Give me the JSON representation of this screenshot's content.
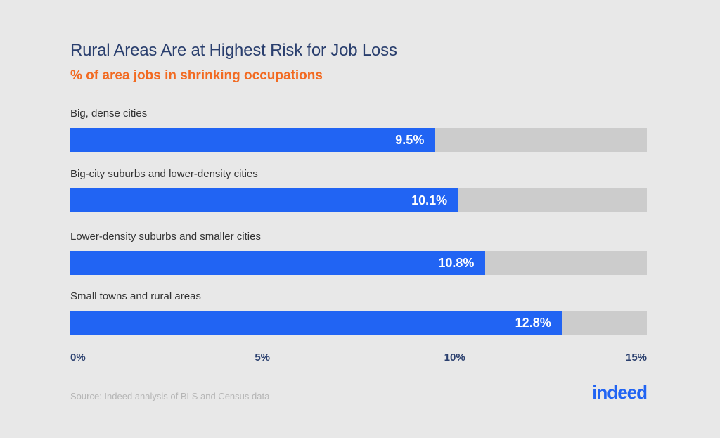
{
  "chart_data": {
    "type": "bar",
    "orientation": "horizontal",
    "title": "Rural Areas Are at Highest Risk for Job Loss",
    "subtitle": "% of area jobs in shrinking occupations",
    "categories": [
      "Big, dense cities",
      "Big-city suburbs and lower-density cities",
      "Lower-density suburbs and smaller cities",
      "Small towns and rural areas"
    ],
    "values": [
      9.5,
      10.1,
      10.8,
      12.8
    ],
    "value_labels": [
      "9.5%",
      "10.1%",
      "10.8%",
      "12.8%"
    ],
    "xlim": [
      0,
      15
    ],
    "ticks": [
      0,
      5,
      10,
      15
    ],
    "tick_labels": [
      "0%",
      "5%",
      "10%",
      "15%"
    ],
    "grid": false,
    "colors": {
      "bar": "#2164f3",
      "track": "#cccccc",
      "title": "#2a3f6e",
      "subtitle": "#f26a21"
    }
  },
  "source": "Source: Indeed analysis of BLS and Census data",
  "logo_text": "indeed"
}
